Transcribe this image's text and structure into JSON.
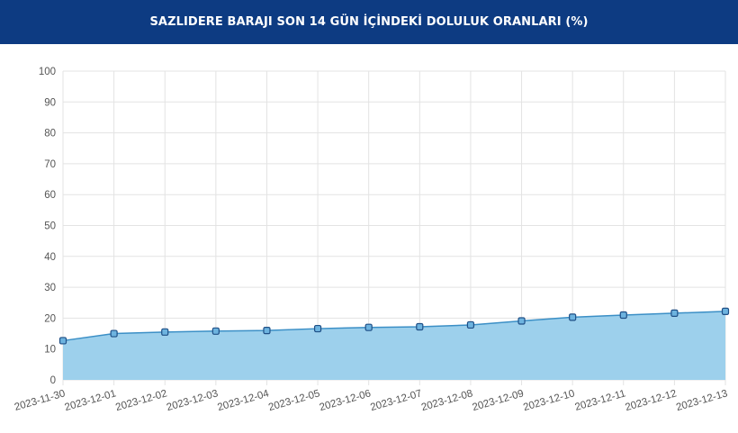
{
  "header": {
    "title": "SAZLIDERE BARAJI SON 14 GÜN İÇİNDEKİ DOLULUK ORANLARI (%)"
  },
  "colors": {
    "header_bg": "#0d3b82",
    "area_fill": "#9dd0ec",
    "line": "#3b8fc6",
    "marker_fill": "#6db3df",
    "marker_stroke": "#1f4f86",
    "grid": "#e3e3e3"
  },
  "chart_data": {
    "type": "area",
    "title": "SAZLIDERE BARAJI SON 14 GÜN İÇİNDEKİ DOLULUK ORANLARI (%)",
    "xlabel": "",
    "ylabel": "",
    "ylim": [
      0,
      100
    ],
    "yticks": [
      0,
      10,
      20,
      30,
      40,
      50,
      60,
      70,
      80,
      90,
      100
    ],
    "grid": true,
    "legend": "none",
    "categories": [
      "2023-11-30",
      "2023-12-01",
      "2023-12-02",
      "2023-12-03",
      "2023-12-04",
      "2023-12-05",
      "2023-12-06",
      "2023-12-07",
      "2023-12-08",
      "2023-12-09",
      "2023-12-10",
      "2023-12-11",
      "2023-12-12",
      "2023-12-13"
    ],
    "values": [
      12.7,
      15.0,
      15.5,
      15.8,
      16.0,
      16.6,
      17.0,
      17.2,
      17.8,
      19.1,
      20.3,
      21.0,
      21.6,
      22.2
    ]
  }
}
